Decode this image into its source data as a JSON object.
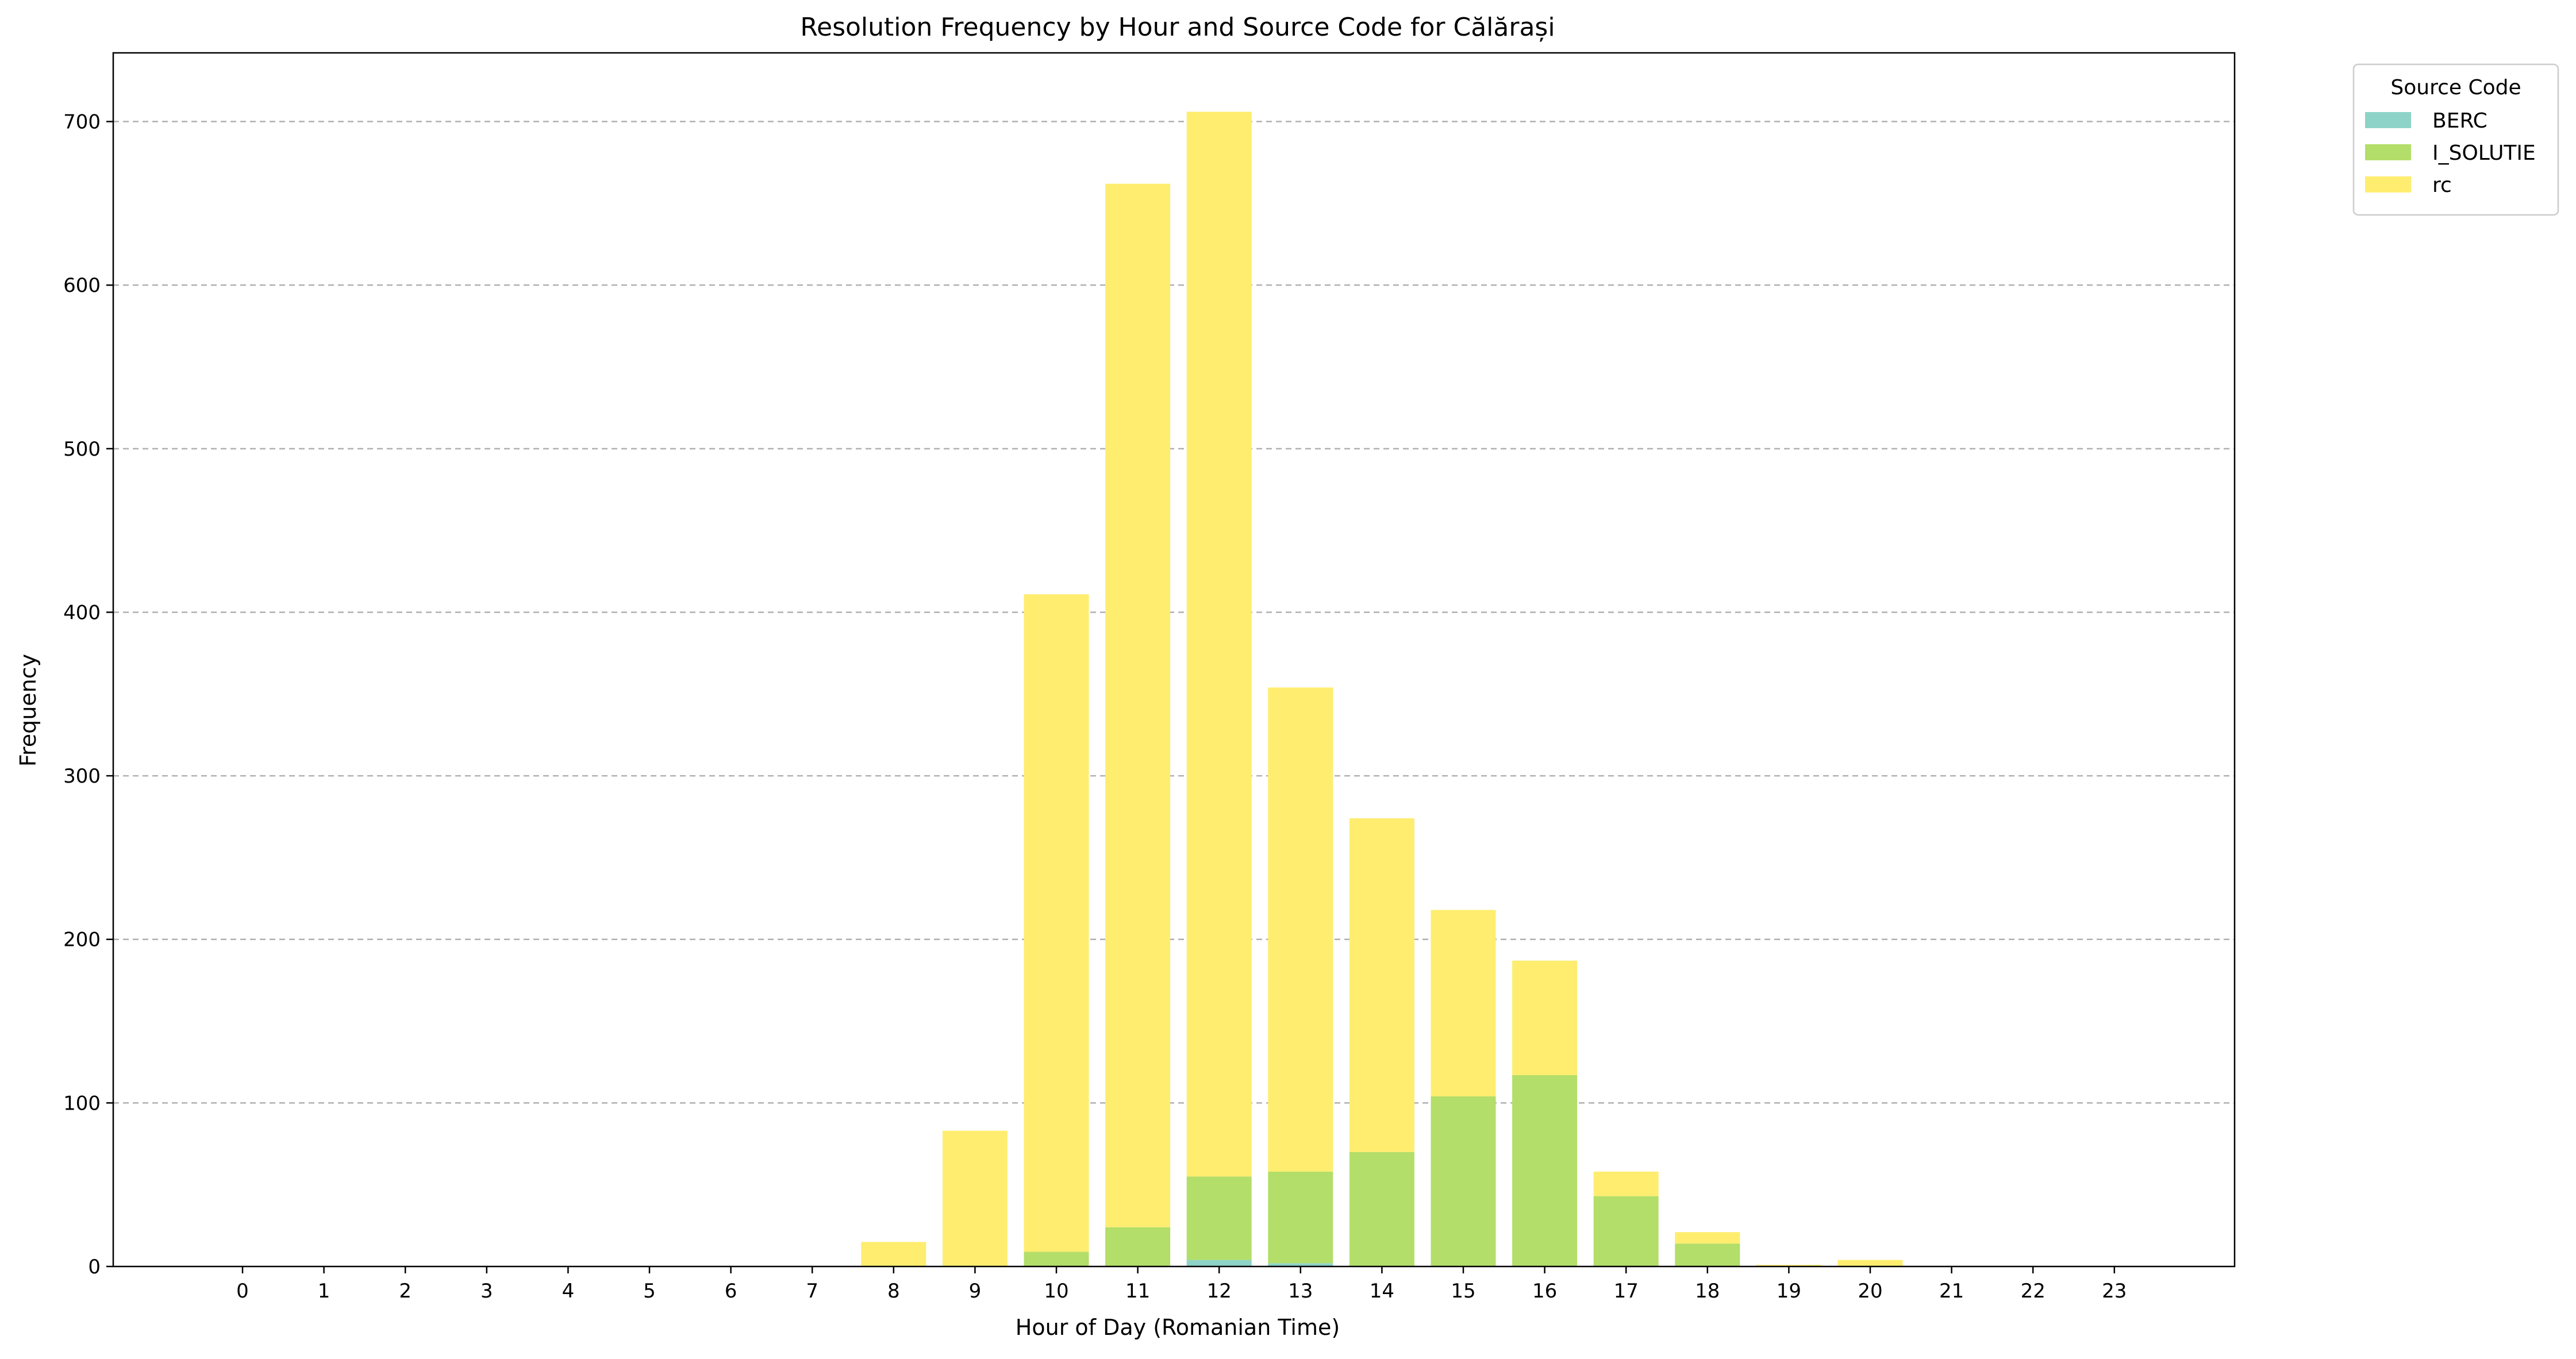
{
  "chart_data": {
    "type": "bar",
    "stacked": true,
    "title": "Resolution Frequency by Hour and Source Code for Călărași",
    "xlabel": "Hour of Day (Romanian Time)",
    "ylabel": "Frequency",
    "categories": [
      "0",
      "1",
      "2",
      "3",
      "4",
      "5",
      "6",
      "7",
      "8",
      "9",
      "10",
      "11",
      "12",
      "13",
      "14",
      "15",
      "16",
      "17",
      "18",
      "19",
      "20",
      "21",
      "22",
      "23"
    ],
    "ylim": [
      0,
      742
    ],
    "yticks": [
      0,
      100,
      200,
      300,
      400,
      500,
      600,
      700
    ],
    "grid": "y-dashed",
    "legend": {
      "title": "Source Code",
      "placement": "outside-top-right"
    },
    "series": [
      {
        "name": "BERC",
        "color": "#8dd3c7",
        "values": [
          0,
          0,
          0,
          0,
          0,
          0,
          0,
          0,
          0,
          0,
          0,
          0,
          4,
          2,
          0,
          0,
          0,
          0,
          0,
          0,
          0,
          0,
          0,
          0
        ]
      },
      {
        "name": "I_SOLUTIE",
        "color": "#b3de69",
        "values": [
          0,
          0,
          0,
          0,
          0,
          0,
          0,
          0,
          0,
          0,
          9,
          24,
          51,
          56,
          70,
          104,
          117,
          43,
          14,
          0,
          0,
          0,
          0,
          0
        ]
      },
      {
        "name": "rc",
        "color": "#ffed6f",
        "values": [
          0,
          0,
          0,
          0,
          0,
          0,
          0,
          0,
          15,
          83,
          402,
          638,
          651,
          296,
          204,
          114,
          70,
          15,
          7,
          1,
          4,
          0,
          0,
          0
        ]
      }
    ]
  }
}
